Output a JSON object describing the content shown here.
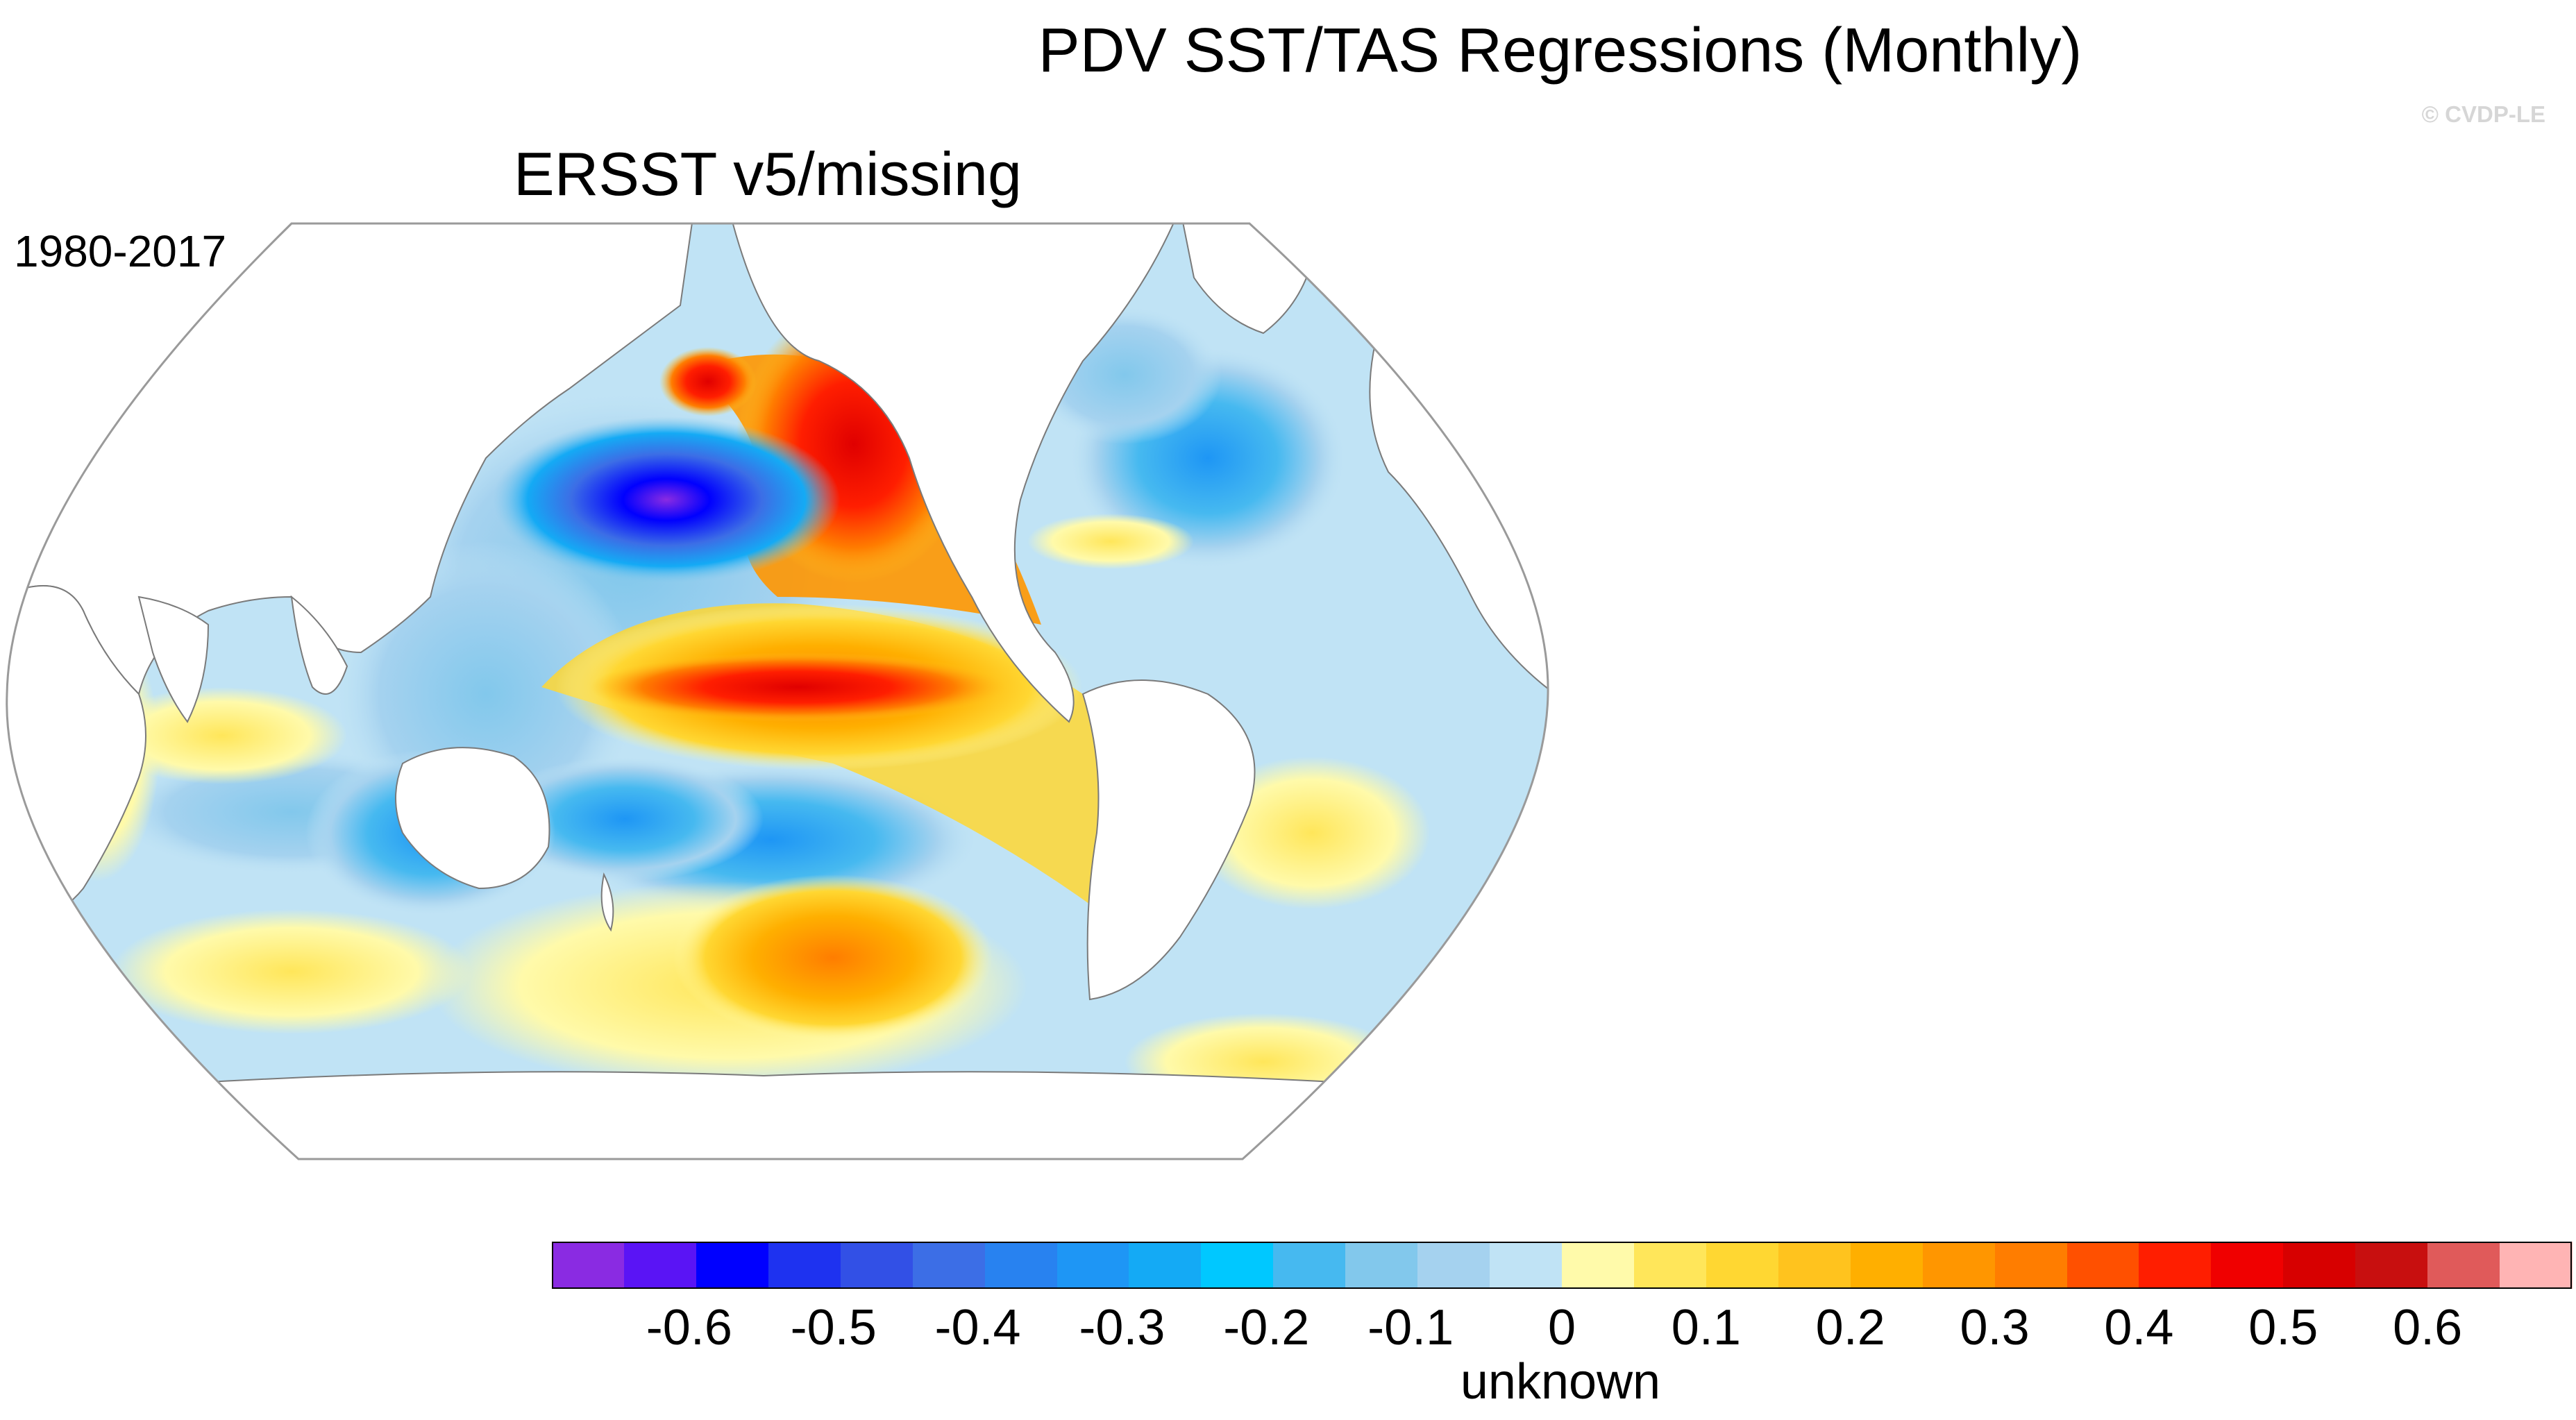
{
  "figure": {
    "title": "PDV SST/TAS Regressions (Monthly)",
    "copyright": "© CVDP-LE",
    "panel_title": "ERSST v5/missing",
    "period": "1980-2017",
    "units_label": "unknown"
  },
  "colorbar": {
    "colors": [
      "#8a2be2",
      "#5a14f5",
      "#0000ff",
      "#1e32f0",
      "#3250e6",
      "#3c6ee6",
      "#2882f0",
      "#1e96f5",
      "#14aaf5",
      "#00c8ff",
      "#46b9f0",
      "#82c8ec",
      "#a5d2ef",
      "#c0e3f5",
      "#fffaaa",
      "#ffe65a",
      "#ffd732",
      "#ffc31e",
      "#ffaf00",
      "#ff9600",
      "#ff7d00",
      "#ff5000",
      "#ff1e00",
      "#f00000",
      "#d70000",
      "#c80f0f",
      "#e05a5a",
      "#ffb4b4"
    ],
    "tick_labels": [
      "-0.6",
      "-0.5",
      "-0.4",
      "-0.3",
      "-0.2",
      "-0.1",
      "0",
      "0.1",
      "0.2",
      "0.3",
      "0.4",
      "0.5",
      "0.6"
    ]
  },
  "map": {
    "projection": "robinson",
    "ocean_base_color": "#c0e3f5",
    "land_color": "#ffffff",
    "coastline_color": "#7a7a7a",
    "features": [
      {
        "name": "north-pacific-cold-pool",
        "value": -0.6
      },
      {
        "name": "northeast-pacific-warm-arc",
        "value": 0.55
      },
      {
        "name": "tropical-pacific-warm-tongue",
        "value": 0.5
      },
      {
        "name": "south-pacific-cold-band",
        "value": -0.3
      },
      {
        "name": "southern-ocean-warm-patch",
        "value": 0.3
      },
      {
        "name": "south-atlantic-warm-patch",
        "value": 0.1
      },
      {
        "name": "indian-ocean-warm-patch",
        "value": 0.1
      },
      {
        "name": "north-atlantic-cold-patch",
        "value": -0.2
      }
    ]
  }
}
